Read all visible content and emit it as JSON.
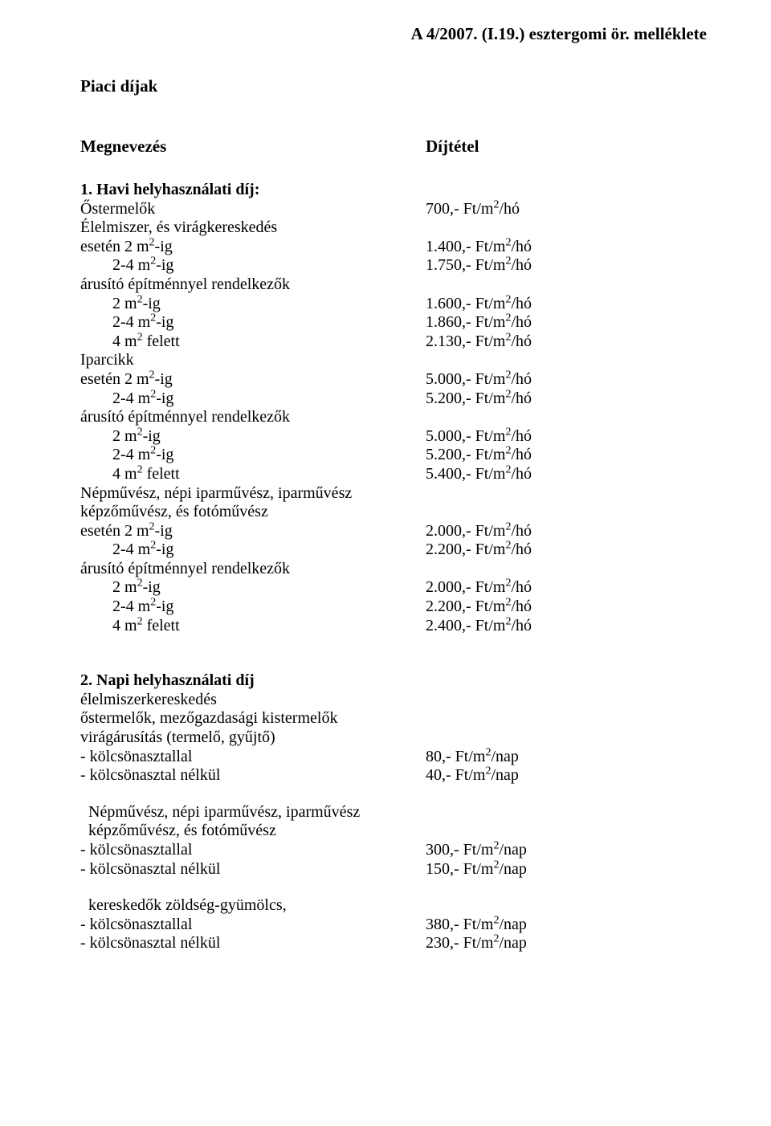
{
  "header": "A  4/2007. (I.19.)  esztergomi ör. melléklete",
  "title": "Piaci díjak",
  "col_left": "Megnevezés",
  "col_right": "Díjtétel",
  "s1": {
    "h": "1. Havi helyhasználati díj:",
    "r1l": "Őstermelők",
    "r1r": "700,- Ft/m",
    "r1r2": "/hó",
    "r2l": "Élelmiszer, és virágkereskedés",
    "r3l": "esetén 2 m",
    "r3l2": "-ig",
    "r3r": "1.400,- Ft/m",
    "r3r2": "/hó",
    "r4l": "        2-4 m",
    "r4l2": "-ig",
    "r4r": "1.750,- Ft/m",
    "r4r2": "/hó",
    "r5l": "árusító építménnyel rendelkezők",
    "r6l": "        2 m",
    "r6l2": "-ig",
    "r6r": "1.600,- Ft/m",
    "r6r2": "/hó",
    "r7l": "        2-4 m",
    "r7l2": "-ig",
    "r7r": "1.860,- Ft/m",
    "r7r2": "/hó",
    "r8l": "        4 m",
    "r8l2": " felett",
    "r8r": "2.130,- Ft/m",
    "r8r2": "/hó",
    "r9l": "Iparcikk",
    "r10l": "esetén 2 m",
    "r10l2": "-ig",
    "r10r": "5.000,- Ft/m",
    "r10r2": "/hó",
    "r11l": "        2-4 m",
    "r11l2": "-ig",
    "r11r": "5.200,- Ft/m",
    "r11r2": "/hó",
    "r12l": "árusító építménnyel rendelkezők",
    "r13l": "        2 m",
    "r13l2": "-ig",
    "r13r": "5.000,- Ft/m",
    "r13r2": "/hó",
    "r14l": "        2-4 m",
    "r14l2": "-ig",
    "r14r": "5.200,- Ft/m",
    "r14r2": "/hó",
    "r15l": "        4 m",
    "r15l2": " felett",
    "r15r": "5.400,- Ft/m",
    "r15r2": "/hó",
    "r16l": "Népművész, népi iparművész, iparművész",
    "r17l": "képzőművész, és fotóművész",
    "r18l": "esetén 2 m",
    "r18l2": "-ig",
    "r18r": "2.000,- Ft/m",
    "r18r2": "/hó",
    "r19l": "        2-4 m",
    "r19l2": "-ig",
    "r19r": "2.200,- Ft/m",
    "r19r2": "/hó",
    "r20l": "árusító építménnyel rendelkezők",
    "r21l": "        2 m",
    "r21l2": "-ig",
    "r21r": "2.000,- Ft/m",
    "r21r2": "/hó",
    "r22l": "        2-4 m",
    "r22l2": "-ig",
    "r22r": "2.200,- Ft/m",
    "r22r2": "/hó",
    "r23l": "        4 m",
    "r23l2": " felett",
    "r23r": "2.400,- Ft/m",
    "r23r2": "/hó"
  },
  "s2": {
    "h": "2. Napi helyhasználati díj",
    "l1": "élelmiszerkereskedés",
    "l2": "őstermelők, mezőgazdasági kistermelők",
    "l3": "virágárusítás (termelő, gyűjtő)",
    "l4": "- kölcsönasztallal",
    "r4": "80,- Ft/m",
    "r4b": "/nap",
    "l5": "- kölcsönasztal nélkül",
    "r5": "40,- Ft/m",
    "r5b": "/nap",
    "l6": "  Népművész, népi iparművész, iparművész",
    "l7": "  képzőművész, és fotóművész",
    "l8": "- kölcsönasztallal",
    "r8": "300,- Ft/m",
    "r8b": "/nap",
    "l9": "- kölcsönasztal nélkül",
    "r9": "150,- Ft/m",
    "r9b": "/nap",
    "l10": "  kereskedők zöldség-gyümölcs,",
    "l11": "- kölcsönasztallal",
    "r11": "380,- Ft/m",
    "r11b": "/nap",
    "l12": "- kölcsönasztal nélkül",
    "r12": "230,- Ft/m",
    "r12b": "/nap"
  },
  "sup2": "2"
}
